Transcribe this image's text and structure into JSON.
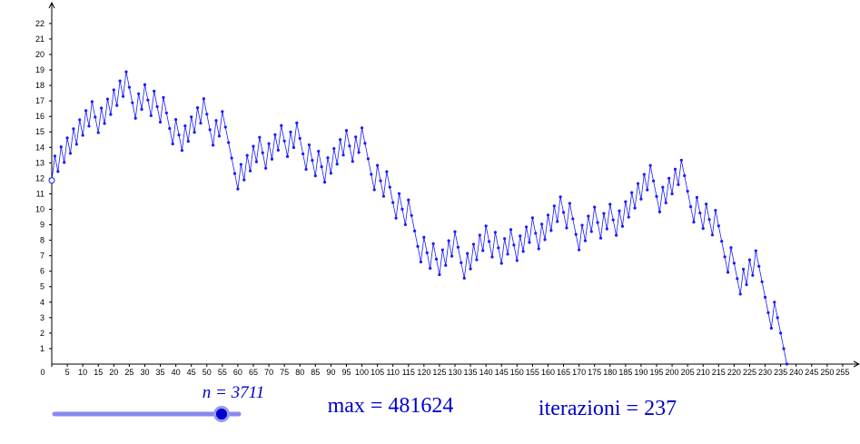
{
  "chart_data": {
    "type": "line",
    "x": [
      0,
      1,
      2,
      3,
      4,
      5,
      6,
      7,
      8,
      9,
      10,
      11,
      12,
      13,
      14,
      15,
      16,
      17,
      18,
      19,
      20,
      21,
      22,
      23,
      24,
      25,
      26,
      27,
      28,
      29,
      30,
      31,
      32,
      33,
      34,
      35,
      36,
      37,
      38,
      39,
      40,
      41,
      42,
      43,
      44,
      45,
      46,
      47,
      48,
      49,
      50,
      51,
      52,
      53,
      54,
      55,
      56,
      57,
      58,
      59,
      60,
      61,
      62,
      63,
      64,
      65,
      66,
      67,
      68,
      69,
      70,
      71,
      72,
      73,
      74,
      75,
      76,
      77,
      78,
      79,
      80,
      81,
      82,
      83,
      84,
      85,
      86,
      87,
      88,
      89,
      90,
      91,
      92,
      93,
      94,
      95,
      96,
      97,
      98,
      99,
      100,
      101,
      102,
      103,
      104,
      105,
      106,
      107,
      108,
      109,
      110,
      111,
      112,
      113,
      114,
      115,
      116,
      117,
      118,
      119,
      120,
      121,
      122,
      123,
      124,
      125,
      126,
      127,
      128,
      129,
      130,
      131,
      132,
      133,
      134,
      135,
      136,
      137,
      138,
      139,
      140,
      141,
      142,
      143,
      144,
      145,
      146,
      147,
      148,
      149,
      150,
      151,
      152,
      153,
      154,
      155,
      156,
      157,
      158,
      159,
      160,
      161,
      162,
      163,
      164,
      165,
      166,
      167,
      168,
      169,
      170,
      171,
      172,
      173,
      174,
      175,
      176,
      177,
      178,
      179,
      180,
      181,
      182,
      183,
      184,
      185,
      186,
      187,
      188,
      189,
      190,
      191,
      192,
      193,
      194,
      195,
      196,
      197,
      198,
      199,
      200,
      201,
      202,
      203,
      204,
      205,
      206,
      207,
      208,
      209,
      210,
      211,
      212,
      213,
      214,
      215,
      216,
      217,
      218,
      219,
      220,
      221,
      222,
      223,
      224,
      225,
      226,
      227,
      228,
      229,
      230,
      231,
      232,
      233,
      234,
      235,
      236,
      237
    ],
    "series": [
      {
        "color": "#1a1aff",
        "values": [
          11.86,
          13.44,
          12.44,
          14.03,
          13.03,
          14.61,
          13.61,
          15.2,
          14.2,
          15.78,
          14.78,
          16.37,
          15.37,
          16.95,
          15.95,
          14.95,
          16.54,
          15.54,
          17.12,
          16.12,
          17.71,
          16.71,
          18.29,
          17.29,
          18.88,
          17.88,
          16.88,
          15.88,
          17.46,
          16.46,
          18.05,
          17.05,
          16.05,
          17.63,
          16.63,
          15.63,
          17.22,
          16.22,
          15.22,
          14.22,
          15.8,
          14.8,
          13.8,
          15.39,
          14.39,
          15.97,
          14.97,
          16.56,
          15.56,
          17.14,
          16.14,
          15.14,
          14.14,
          15.73,
          14.73,
          16.31,
          15.31,
          14.31,
          13.31,
          12.31,
          11.31,
          12.9,
          11.9,
          13.48,
          12.48,
          14.07,
          13.07,
          14.65,
          13.65,
          12.65,
          14.24,
          13.24,
          14.82,
          13.82,
          15.41,
          14.41,
          13.41,
          14.99,
          13.99,
          15.58,
          14.58,
          13.58,
          12.58,
          14.16,
          13.16,
          12.16,
          13.75,
          12.75,
          11.75,
          13.33,
          12.33,
          13.92,
          12.92,
          14.5,
          13.5,
          15.09,
          14.09,
          13.09,
          14.67,
          13.67,
          15.26,
          14.26,
          13.26,
          12.26,
          11.26,
          12.84,
          11.84,
          10.84,
          12.43,
          11.43,
          10.43,
          9.43,
          11.01,
          10.01,
          9.01,
          10.6,
          9.6,
          8.6,
          7.6,
          6.6,
          8.19,
          7.19,
          6.19,
          7.78,
          6.78,
          5.78,
          7.38,
          6.38,
          7.97,
          6.97,
          8.55,
          7.55,
          6.55,
          5.55,
          7.15,
          6.15,
          7.74,
          6.74,
          8.33,
          7.33,
          8.92,
          7.92,
          6.92,
          8.51,
          7.51,
          6.51,
          8.1,
          7.1,
          8.69,
          7.69,
          6.69,
          8.28,
          7.28,
          8.86,
          7.86,
          9.45,
          8.45,
          7.45,
          9.04,
          8.04,
          9.63,
          8.63,
          10.21,
          9.21,
          10.8,
          9.8,
          8.8,
          10.38,
          9.38,
          8.38,
          7.38,
          8.97,
          7.97,
          9.56,
          8.56,
          10.14,
          9.14,
          8.14,
          9.73,
          8.73,
          10.32,
          9.32,
          8.32,
          9.9,
          8.9,
          10.49,
          9.49,
          11.08,
          10.08,
          11.66,
          10.66,
          12.25,
          11.25,
          12.83,
          11.83,
          10.83,
          9.83,
          11.42,
          10.42,
          12.0,
          11.0,
          12.59,
          11.59,
          13.17,
          12.17,
          11.17,
          10.17,
          9.17,
          10.76,
          9.76,
          8.76,
          10.34,
          9.34,
          8.34,
          9.93,
          8.93,
          7.93,
          6.93,
          5.93,
          7.52,
          6.52,
          5.52,
          4.52,
          6.13,
          5.13,
          6.73,
          5.73,
          7.32,
          6.32,
          5.32,
          4.32,
          3.32,
          2.32,
          4,
          3,
          2,
          1,
          0
        ]
      }
    ],
    "xlim": [
      0,
      260
    ],
    "ylim": [
      0,
      23.5
    ],
    "xticks": [
      0,
      5,
      10,
      15,
      20,
      25,
      30,
      35,
      40,
      45,
      50,
      55,
      60,
      65,
      70,
      75,
      80,
      85,
      90,
      95,
      100,
      105,
      110,
      115,
      120,
      125,
      130,
      135,
      140,
      145,
      150,
      155,
      160,
      165,
      170,
      175,
      180,
      185,
      190,
      195,
      200,
      205,
      210,
      215,
      220,
      225,
      230,
      235,
      240,
      245,
      250,
      255
    ],
    "yticks": [
      1,
      2,
      3,
      4,
      5,
      6,
      7,
      8,
      9,
      10,
      11,
      12,
      13,
      14,
      15,
      16,
      17,
      18,
      19,
      20,
      21,
      22
    ]
  },
  "slider_label": "n = 3711",
  "max_label": "max = 481624",
  "iterations_label": "iterazioni = 237"
}
